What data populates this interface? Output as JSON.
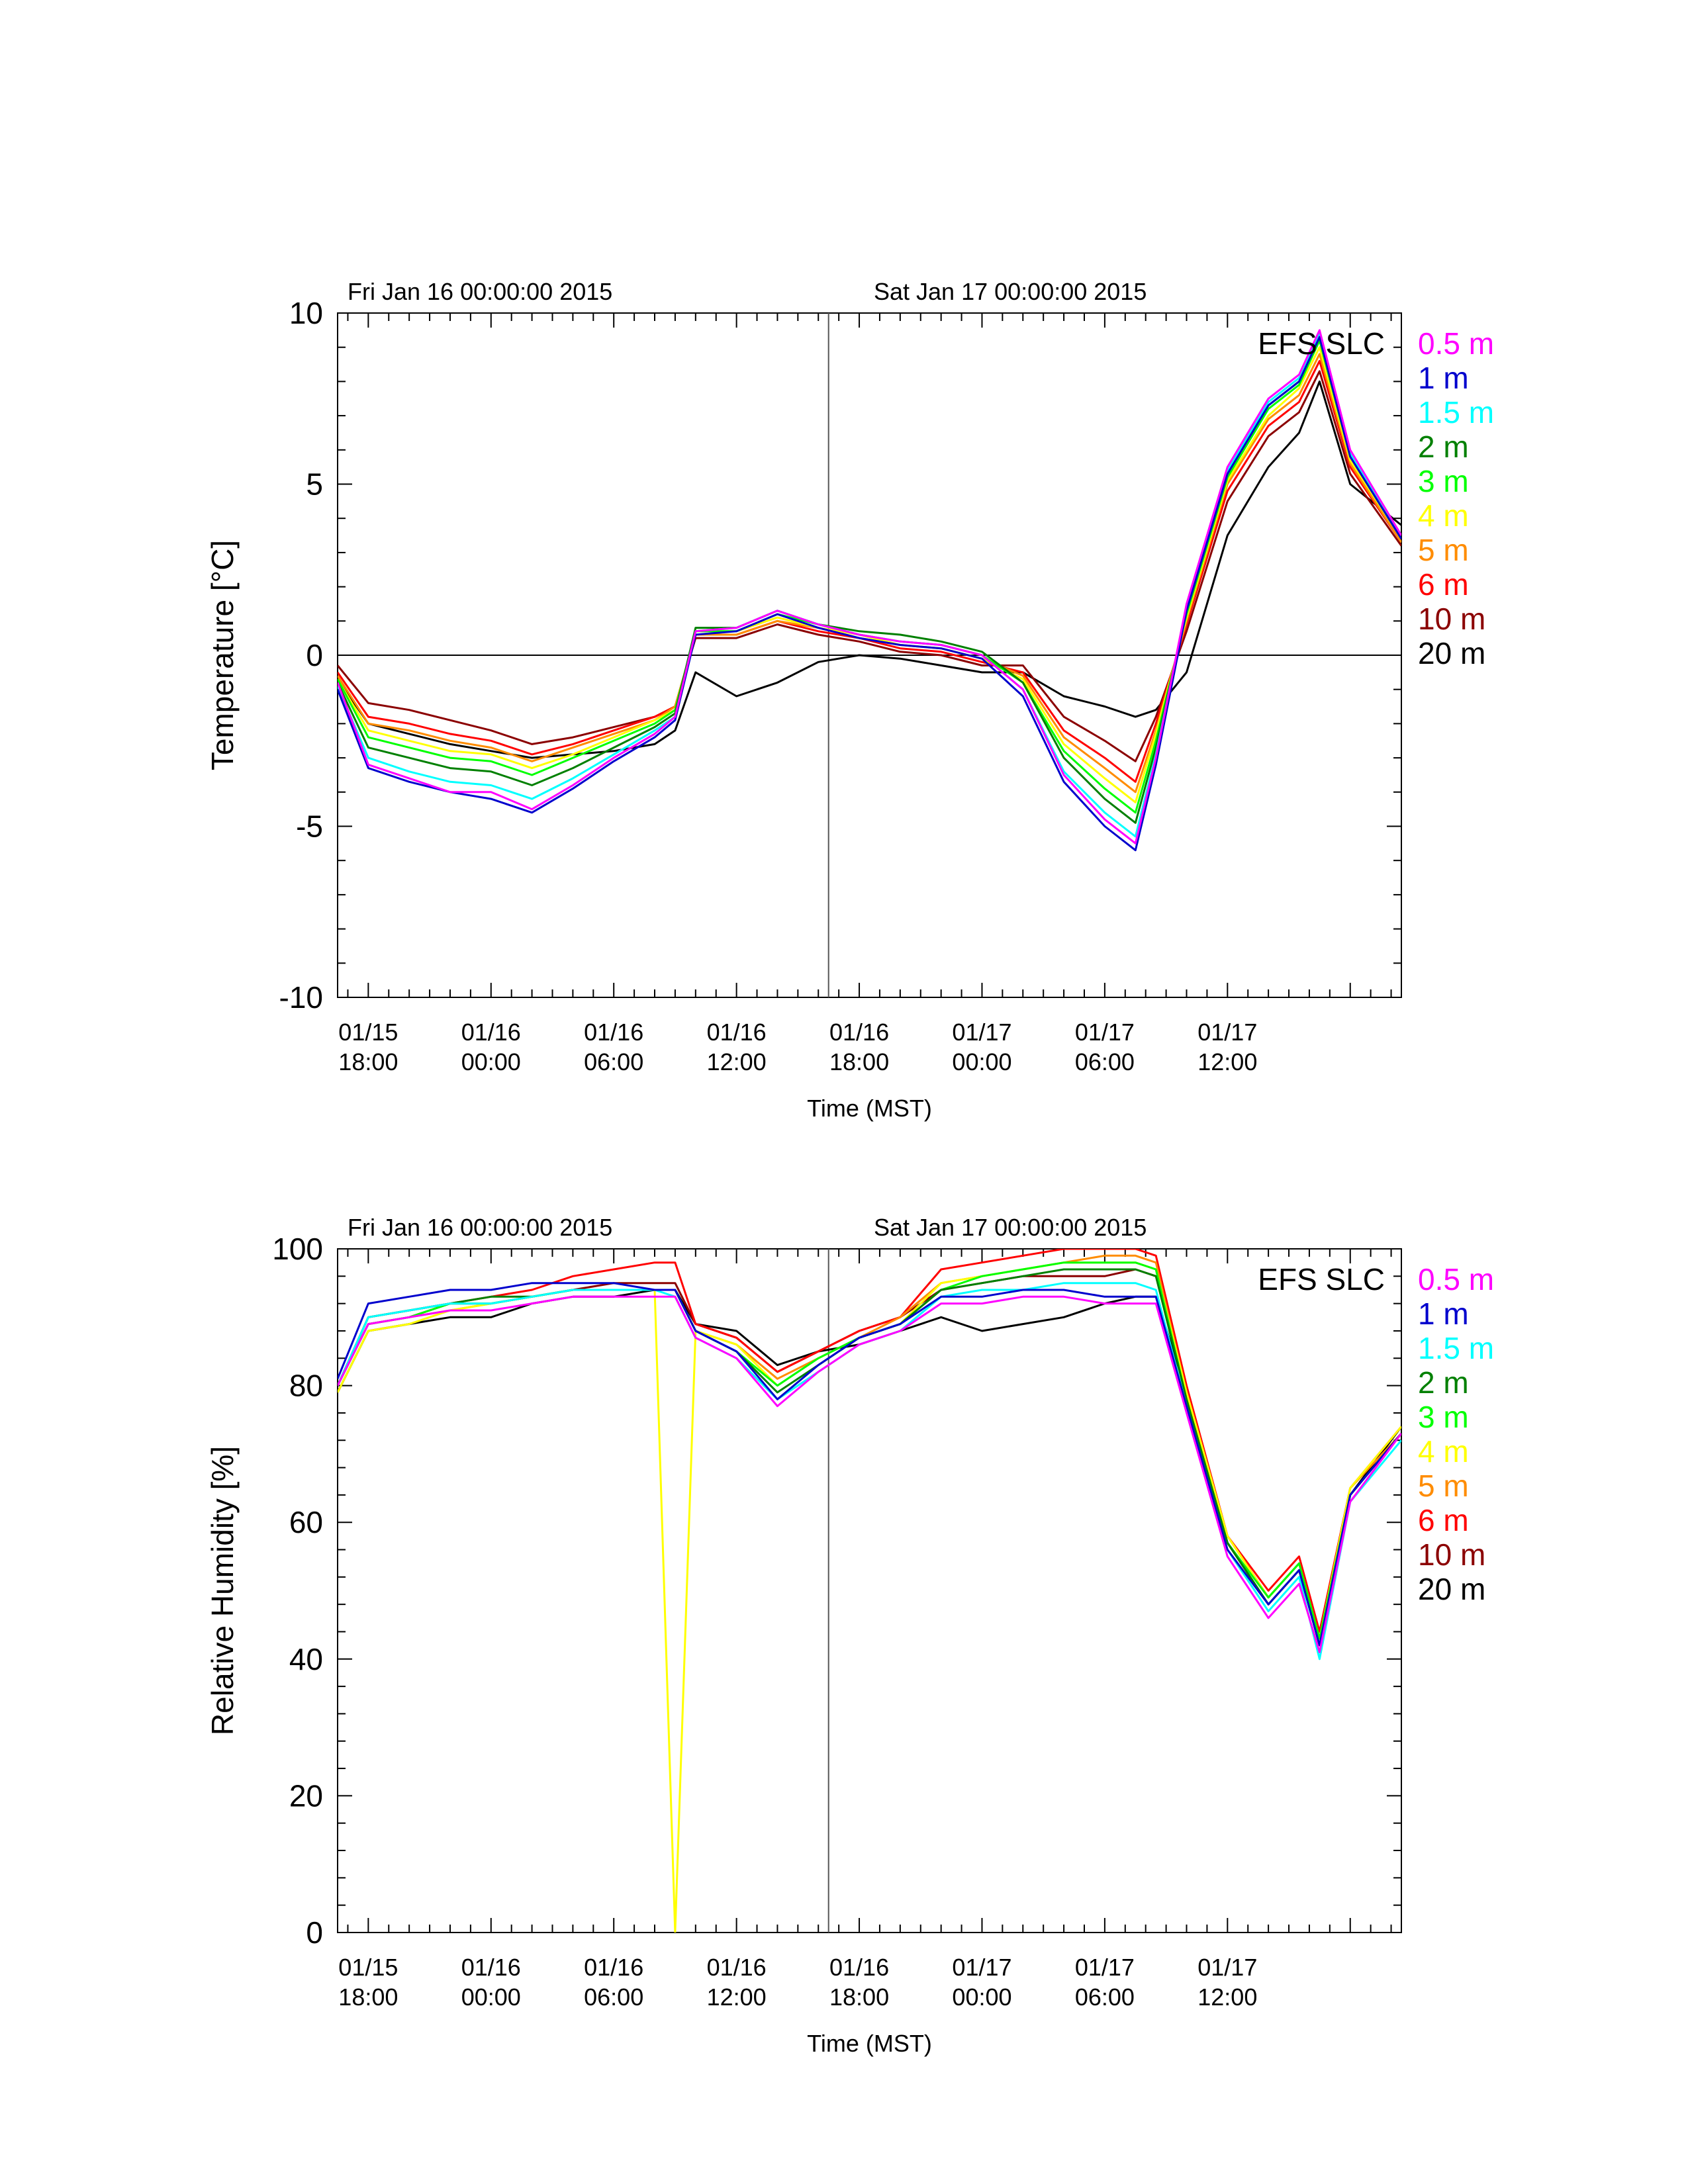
{
  "chart_data": [
    {
      "type": "line",
      "site_label": "EFS SLC",
      "top_labels": [
        "Fri Jan 16 00:00:00 2015",
        "Sat Jan 17 00:00:00 2015"
      ],
      "xlabel": "Time (MST)",
      "ylabel": "Temperature [°C]",
      "ylim": [
        -10,
        10
      ],
      "xlim": [
        "2015-01-15 16:30",
        "2015-01-17 20:30"
      ],
      "y_ticks": [
        {
          "value": 10,
          "label": "10"
        },
        {
          "value": 5,
          "label": "5"
        },
        {
          "value": 0,
          "label": "0"
        },
        {
          "value": -5,
          "label": "-5"
        },
        {
          "value": -10,
          "label": "-10"
        }
      ],
      "x_ticks": [
        {
          "time": "2015-01-15 18:00",
          "date": "01/15",
          "clock": "18:00"
        },
        {
          "time": "2015-01-16 00:00",
          "date": "01/16",
          "clock": "00:00"
        },
        {
          "time": "2015-01-16 06:00",
          "date": "01/16",
          "clock": "06:00"
        },
        {
          "time": "2015-01-16 12:00",
          "date": "01/16",
          "clock": "12:00"
        },
        {
          "time": "2015-01-16 18:00",
          "date": "01/16",
          "clock": "18:00"
        },
        {
          "time": "2015-01-17 00:00",
          "date": "01/17",
          "clock": "00:00"
        },
        {
          "time": "2015-01-17 06:00",
          "date": "01/17",
          "clock": "06:00"
        },
        {
          "time": "2015-01-17 12:00",
          "date": "01/17",
          "clock": "12:00"
        }
      ],
      "vline_time": "2015-01-16 16:30",
      "hline_value": 0,
      "x": [
        "2015-01-15 16:30",
        "2015-01-15 18:00",
        "2015-01-15 20:00",
        "2015-01-15 22:00",
        "2015-01-16 00:00",
        "2015-01-16 02:00",
        "2015-01-16 04:00",
        "2015-01-16 06:00",
        "2015-01-16 08:00",
        "2015-01-16 09:00",
        "2015-01-16 10:00",
        "2015-01-16 12:00",
        "2015-01-16 14:00",
        "2015-01-16 16:00",
        "2015-01-16 18:00",
        "2015-01-16 20:00",
        "2015-01-16 22:00",
        "2015-01-17 00:00",
        "2015-01-17 02:00",
        "2015-01-17 04:00",
        "2015-01-17 06:00",
        "2015-01-17 07:30",
        "2015-01-17 08:30",
        "2015-01-17 10:00",
        "2015-01-17 12:00",
        "2015-01-17 14:00",
        "2015-01-17 15:30",
        "2015-01-17 16:30",
        "2015-01-17 18:00",
        "2015-01-17 20:30"
      ],
      "series": [
        {
          "name": "0.5 m",
          "color": "#ff00ff",
          "values": [
            -0.8,
            -3.2,
            -3.6,
            -4.0,
            -4.0,
            -4.5,
            -3.8,
            -3.0,
            -2.3,
            -1.8,
            0.7,
            0.8,
            1.3,
            0.9,
            0.6,
            0.4,
            0.3,
            0.0,
            -1.0,
            -3.5,
            -4.8,
            -5.5,
            -3.0,
            1.5,
            5.5,
            7.5,
            8.2,
            9.5,
            6.0,
            3.5
          ]
        },
        {
          "name": "1 m",
          "color": "#0000cd",
          "values": [
            -1.0,
            -3.3,
            -3.7,
            -4.0,
            -4.2,
            -4.6,
            -3.9,
            -3.1,
            -2.4,
            -1.9,
            0.6,
            0.7,
            1.2,
            0.8,
            0.5,
            0.3,
            0.2,
            -0.1,
            -1.2,
            -3.7,
            -5.0,
            -5.7,
            -3.2,
            1.3,
            5.3,
            7.3,
            8.0,
            9.3,
            5.8,
            3.4
          ]
        },
        {
          "name": "1.5 m",
          "color": "#00ffff",
          "values": [
            -0.9,
            -3.0,
            -3.4,
            -3.7,
            -3.8,
            -4.2,
            -3.6,
            -2.9,
            -2.2,
            -1.8,
            0.7,
            0.8,
            1.3,
            0.9,
            0.6,
            0.4,
            0.3,
            0.0,
            -1.0,
            -3.4,
            -4.6,
            -5.3,
            -2.9,
            1.4,
            5.4,
            7.4,
            8.1,
            9.4,
            5.9,
            3.5
          ]
        },
        {
          "name": "2 m",
          "color": "#008000",
          "values": [
            -0.8,
            -2.7,
            -3.0,
            -3.3,
            -3.4,
            -3.8,
            -3.3,
            -2.7,
            -2.1,
            -1.7,
            0.8,
            0.8,
            1.3,
            0.9,
            0.7,
            0.6,
            0.4,
            0.1,
            -0.8,
            -3.0,
            -4.2,
            -4.9,
            -2.7,
            1.3,
            5.3,
            7.3,
            8.0,
            9.3,
            5.9,
            3.5
          ]
        },
        {
          "name": "3 m",
          "color": "#00ff00",
          "values": [
            -0.7,
            -2.4,
            -2.7,
            -3.0,
            -3.1,
            -3.5,
            -3.0,
            -2.5,
            -2.0,
            -1.6,
            0.7,
            0.7,
            1.2,
            0.9,
            0.6,
            0.4,
            0.3,
            0.0,
            -0.8,
            -2.8,
            -3.9,
            -4.6,
            -2.5,
            1.2,
            5.2,
            7.2,
            7.9,
            9.2,
            5.8,
            3.4
          ]
        },
        {
          "name": "4 m",
          "color": "#ffff00",
          "values": [
            -0.7,
            -2.2,
            -2.5,
            -2.8,
            -2.9,
            -3.3,
            -2.9,
            -2.4,
            -1.9,
            -1.6,
            0.7,
            0.7,
            1.1,
            0.8,
            0.6,
            0.3,
            0.2,
            -0.1,
            -0.7,
            -2.6,
            -3.6,
            -4.3,
            -2.3,
            1.1,
            5.1,
            7.0,
            7.8,
            9.0,
            5.7,
            3.4
          ]
        },
        {
          "name": "5 m",
          "color": "#ff8c00",
          "values": [
            -0.6,
            -2.0,
            -2.2,
            -2.5,
            -2.7,
            -3.1,
            -2.7,
            -2.3,
            -1.9,
            -1.5,
            0.6,
            0.6,
            1.0,
            0.8,
            0.5,
            0.3,
            0.2,
            -0.1,
            -0.6,
            -2.4,
            -3.3,
            -4.0,
            -2.2,
            1.0,
            5.0,
            6.9,
            7.6,
            8.8,
            5.6,
            3.3
          ]
        },
        {
          "name": "6 m",
          "color": "#ff0000",
          "values": [
            -0.5,
            -1.8,
            -2.0,
            -2.3,
            -2.5,
            -2.9,
            -2.6,
            -2.2,
            -1.8,
            -1.5,
            0.6,
            0.6,
            1.0,
            0.7,
            0.5,
            0.2,
            0.1,
            -0.2,
            -0.5,
            -2.2,
            -3.0,
            -3.7,
            -2.0,
            0.9,
            4.8,
            6.7,
            7.4,
            8.6,
            5.5,
            3.3
          ]
        },
        {
          "name": "10 m",
          "color": "#8b0000",
          "values": [
            -0.3,
            -1.4,
            -1.6,
            -1.9,
            -2.2,
            -2.6,
            -2.4,
            -2.1,
            -1.8,
            -1.5,
            0.5,
            0.5,
            0.9,
            0.6,
            0.4,
            0.1,
            0.0,
            -0.3,
            -0.3,
            -1.8,
            -2.5,
            -3.1,
            -1.8,
            0.7,
            4.5,
            6.4,
            7.1,
            8.3,
            5.3,
            3.2
          ]
        },
        {
          "name": "20 m",
          "color": "#000000",
          "values": [
            -0.7,
            -2.0,
            -2.3,
            -2.6,
            -2.8,
            -3.0,
            -2.9,
            -2.8,
            -2.6,
            -2.2,
            -0.5,
            -1.2,
            -0.8,
            -0.2,
            0.0,
            -0.1,
            -0.3,
            -0.5,
            -0.5,
            -1.2,
            -1.5,
            -1.8,
            -1.6,
            -0.5,
            3.5,
            5.5,
            6.5,
            8.0,
            5.0,
            3.8
          ]
        }
      ]
    },
    {
      "type": "line",
      "site_label": "EFS SLC",
      "top_labels": [
        "Fri Jan 16 00:00:00 2015",
        "Sat Jan 17 00:00:00 2015"
      ],
      "xlabel": "Time (MST)",
      "ylabel": "Relative Humidity [%]",
      "ylim": [
        0,
        100
      ],
      "xlim": [
        "2015-01-15 16:30",
        "2015-01-17 20:30"
      ],
      "y_ticks": [
        {
          "value": 100,
          "label": "100"
        },
        {
          "value": 80,
          "label": "80"
        },
        {
          "value": 60,
          "label": "60"
        },
        {
          "value": 40,
          "label": "40"
        },
        {
          "value": 20,
          "label": "20"
        },
        {
          "value": 0,
          "label": "0"
        }
      ],
      "x_ticks": [
        {
          "time": "2015-01-15 18:00",
          "date": "01/15",
          "clock": "18:00"
        },
        {
          "time": "2015-01-16 00:00",
          "date": "01/16",
          "clock": "00:00"
        },
        {
          "time": "2015-01-16 06:00",
          "date": "01/16",
          "clock": "06:00"
        },
        {
          "time": "2015-01-16 12:00",
          "date": "01/16",
          "clock": "12:00"
        },
        {
          "time": "2015-01-16 18:00",
          "date": "01/16",
          "clock": "18:00"
        },
        {
          "time": "2015-01-17 00:00",
          "date": "01/17",
          "clock": "00:00"
        },
        {
          "time": "2015-01-17 06:00",
          "date": "01/17",
          "clock": "06:00"
        },
        {
          "time": "2015-01-17 12:00",
          "date": "01/17",
          "clock": "12:00"
        }
      ],
      "vline_time": "2015-01-16 16:30",
      "x": [
        "2015-01-15 16:30",
        "2015-01-15 18:00",
        "2015-01-15 20:00",
        "2015-01-15 22:00",
        "2015-01-16 00:00",
        "2015-01-16 02:00",
        "2015-01-16 04:00",
        "2015-01-16 06:00",
        "2015-01-16 08:00",
        "2015-01-16 09:00",
        "2015-01-16 10:00",
        "2015-01-16 12:00",
        "2015-01-16 14:00",
        "2015-01-16 16:00",
        "2015-01-16 18:00",
        "2015-01-16 20:00",
        "2015-01-16 22:00",
        "2015-01-17 00:00",
        "2015-01-17 02:00",
        "2015-01-17 04:00",
        "2015-01-17 06:00",
        "2015-01-17 07:30",
        "2015-01-17 08:30",
        "2015-01-17 10:00",
        "2015-01-17 12:00",
        "2015-01-17 14:00",
        "2015-01-17 15:30",
        "2015-01-17 16:30",
        "2015-01-17 18:00",
        "2015-01-17 20:30"
      ],
      "series": [
        {
          "name": "0.5 m",
          "color": "#ff00ff",
          "values": [
            80,
            89,
            90,
            91,
            91,
            92,
            93,
            93,
            93,
            93,
            87,
            84,
            77,
            82,
            86,
            88,
            92,
            92,
            93,
            93,
            92,
            92,
            92,
            76,
            55,
            46,
            51,
            41,
            63,
            73
          ]
        },
        {
          "name": "1 m",
          "color": "#0000cd",
          "values": [
            81,
            92,
            93,
            94,
            94,
            95,
            95,
            95,
            94,
            94,
            88,
            85,
            78,
            83,
            87,
            89,
            93,
            93,
            94,
            94,
            93,
            93,
            93,
            77,
            56,
            48,
            53,
            42,
            64,
            73
          ]
        },
        {
          "name": "1.5 m",
          "color": "#00ffff",
          "values": [
            80,
            90,
            91,
            92,
            92,
            93,
            94,
            94,
            94,
            93,
            87,
            84,
            78,
            82,
            86,
            88,
            93,
            94,
            94,
            95,
            95,
            95,
            94,
            77,
            56,
            47,
            52,
            40,
            63,
            72
          ]
        },
        {
          "name": "2 m",
          "color": "#008000",
          "values": [
            80,
            90,
            91,
            92,
            93,
            93,
            94,
            94,
            94,
            94,
            88,
            85,
            79,
            83,
            87,
            89,
            94,
            95,
            96,
            97,
            97,
            97,
            96,
            78,
            57,
            48,
            53,
            42,
            64,
            73
          ]
        },
        {
          "name": "3 m",
          "color": "#00ff00",
          "values": [
            80,
            89,
            90,
            92,
            92,
            93,
            94,
            94,
            94,
            94,
            88,
            85,
            80,
            84,
            87,
            89,
            94,
            96,
            97,
            98,
            98,
            98,
            97,
            78,
            57,
            49,
            54,
            43,
            64,
            73
          ]
        },
        {
          "name": "4 m",
          "color": "#ffff00",
          "values": [
            79,
            88,
            89,
            91,
            92,
            93,
            94,
            94,
            94,
            0,
            88,
            86,
            80,
            84,
            87,
            89,
            95,
            96,
            97,
            98,
            98,
            98,
            97,
            79,
            58,
            49,
            54,
            43,
            65,
            74
          ]
        },
        {
          "name": "5 m",
          "color": "#ff8c00",
          "values": [
            80,
            89,
            90,
            91,
            92,
            93,
            94,
            94,
            94,
            94,
            88,
            86,
            81,
            84,
            87,
            90,
            95,
            96,
            97,
            98,
            99,
            99,
            98,
            79,
            58,
            49,
            54,
            43,
            65,
            73
          ]
        },
        {
          "name": "6 m",
          "color": "#ff0000",
          "values": [
            80,
            90,
            91,
            92,
            93,
            94,
            96,
            97,
            98,
            98,
            89,
            87,
            82,
            85,
            88,
            90,
            97,
            98,
            99,
            100,
            100,
            100,
            99,
            80,
            58,
            50,
            55,
            44,
            65,
            74
          ]
        },
        {
          "name": "10 m",
          "color": "#8b0000",
          "values": [
            80,
            89,
            90,
            92,
            92,
            93,
            94,
            95,
            95,
            95,
            89,
            87,
            82,
            85,
            88,
            90,
            94,
            95,
            96,
            96,
            96,
            97,
            96,
            79,
            58,
            49,
            54,
            43,
            64,
            73
          ]
        },
        {
          "name": "20 m",
          "color": "#000000",
          "values": [
            79,
            88,
            89,
            90,
            90,
            92,
            93,
            93,
            94,
            94,
            89,
            88,
            83,
            85,
            86,
            88,
            90,
            88,
            89,
            90,
            92,
            93,
            93,
            79,
            57,
            48,
            53,
            43,
            64,
            74
          ]
        }
      ]
    }
  ]
}
